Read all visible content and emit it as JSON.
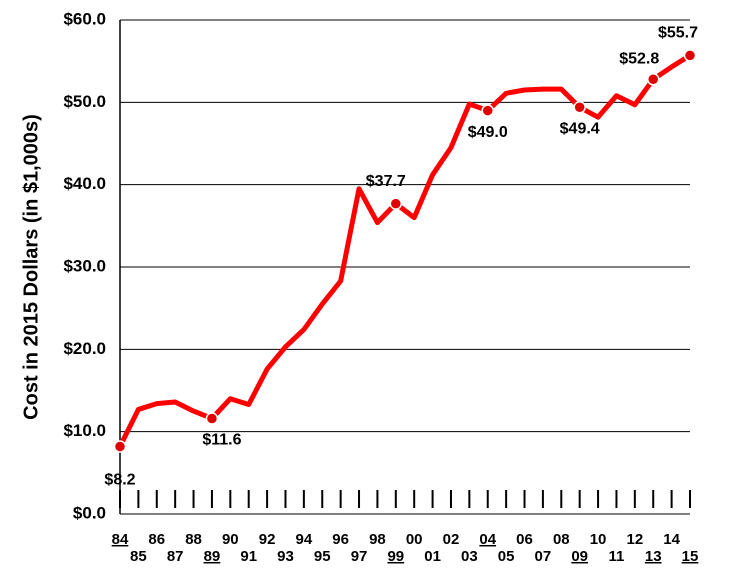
{
  "chart_data": {
    "type": "line",
    "y_label": "Cost in 2015 Dollars (in $1,000s)",
    "categories": [
      "84",
      "85",
      "86",
      "87",
      "88",
      "89",
      "90",
      "91",
      "92",
      "93",
      "94",
      "95",
      "96",
      "97",
      "98",
      "99",
      "00",
      "01",
      "02",
      "03",
      "04",
      "05",
      "06",
      "07",
      "08",
      "09",
      "10",
      "11",
      "12",
      "13",
      "14",
      "15"
    ],
    "values": [
      8.2,
      12.7,
      13.4,
      13.6,
      12.5,
      11.6,
      14.0,
      13.3,
      17.6,
      20.3,
      22.4,
      25.5,
      28.3,
      39.5,
      35.4,
      37.7,
      36.0,
      41.2,
      44.5,
      49.8,
      49.0,
      51.1,
      51.5,
      51.6,
      51.6,
      49.4,
      48.2,
      50.8,
      49.7,
      52.8,
      54.3,
      55.7
    ],
    "value_labels": [
      "$8.2",
      null,
      null,
      null,
      null,
      "$11.6",
      null,
      null,
      null,
      null,
      null,
      null,
      null,
      null,
      null,
      "$37.7",
      null,
      null,
      null,
      null,
      "$49.0",
      null,
      null,
      null,
      null,
      "$49.4",
      null,
      null,
      null,
      "$52.8",
      null,
      "$55.7"
    ],
    "color": "#ff0000",
    "ylim": [
      0,
      60
    ],
    "yticks": [
      {
        "value": 0,
        "label": "$0.0"
      },
      {
        "value": 10,
        "label": "$10.0"
      },
      {
        "value": 20,
        "label": "$20.0"
      },
      {
        "value": 30,
        "label": "$30.0"
      },
      {
        "value": 40,
        "label": "$40.0"
      },
      {
        "value": 50,
        "label": "$50.0"
      },
      {
        "value": 60,
        "label": "$60.0"
      }
    ],
    "grid": true
  }
}
